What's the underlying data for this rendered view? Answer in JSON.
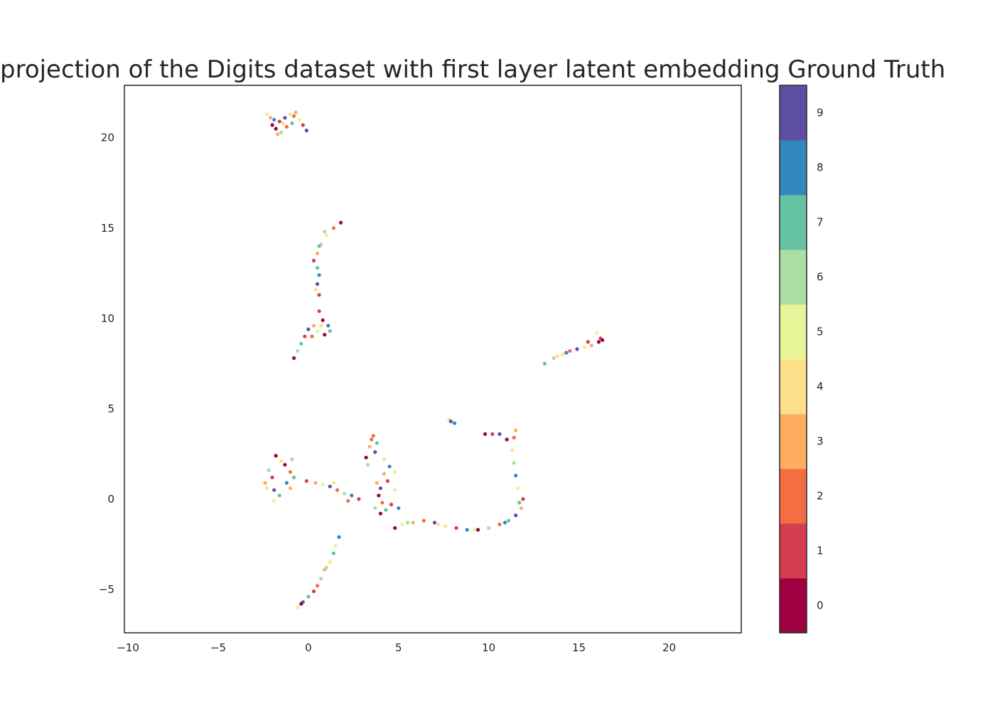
{
  "chart_data": {
    "type": "scatter",
    "title": "projection of the Digits dataset with first layer latent embedding Ground Truth",
    "xlabel": "",
    "ylabel": "",
    "xlim": [
      -10.2,
      24
    ],
    "ylim": [
      -7.4,
      22.9
    ],
    "xticks": [
      -10,
      -5,
      0,
      5,
      10,
      15,
      20
    ],
    "yticks": [
      -5,
      0,
      5,
      10,
      15,
      20
    ],
    "grid": false,
    "colorbar": {
      "labels": [
        "0",
        "1",
        "2",
        "3",
        "4",
        "5",
        "6",
        "7",
        "8",
        "9"
      ],
      "colors": [
        "#9e0142",
        "#d53e4f",
        "#f46d43",
        "#fdae61",
        "#fee08b",
        "#e6f598",
        "#abdda4",
        "#66c2a5",
        "#3288bd",
        "#5e4fa2"
      ]
    },
    "clusters": [
      {
        "pts": [
          [
            -2.3,
            21.3
          ],
          [
            -2.1,
            21.1
          ],
          [
            -1.9,
            21.0
          ],
          [
            -1.6,
            20.9
          ],
          [
            -1.3,
            21.1
          ],
          [
            -1.0,
            21.3
          ],
          [
            -0.7,
            21.4
          ],
          [
            -1.8,
            20.5
          ],
          [
            -1.5,
            20.3
          ],
          [
            -1.2,
            20.6
          ],
          [
            -0.9,
            20.8
          ],
          [
            -0.5,
            21.0
          ],
          [
            -0.3,
            20.7
          ],
          [
            -0.1,
            20.4
          ],
          [
            -2.0,
            20.7
          ],
          [
            -1.4,
            20.8
          ],
          [
            -0.8,
            21.2
          ],
          [
            -1.7,
            20.2
          ]
        ],
        "c": [
          4,
          3,
          8,
          1,
          9,
          4,
          3,
          0,
          6,
          2,
          7,
          5,
          1,
          9,
          0,
          4,
          2,
          3
        ]
      },
      {
        "pts": [
          [
            1.8,
            15.3
          ],
          [
            1.4,
            15.0
          ],
          [
            1.0,
            14.6
          ],
          [
            0.7,
            14.1
          ],
          [
            0.5,
            13.6
          ],
          [
            0.3,
            13.2
          ],
          [
            0.5,
            12.8
          ],
          [
            0.6,
            12.4
          ],
          [
            0.5,
            11.9
          ],
          [
            0.4,
            11.6
          ],
          [
            0.6,
            11.3
          ],
          [
            0.9,
            14.8
          ],
          [
            0.6,
            14.0
          ]
        ],
        "c": [
          0,
          2,
          5,
          6,
          3,
          1,
          7,
          8,
          9,
          4,
          1,
          6,
          7
        ]
      },
      {
        "pts": [
          [
            0.6,
            10.4
          ],
          [
            0.8,
            9.9
          ],
          [
            0.3,
            9.6
          ],
          [
            0.0,
            9.4
          ],
          [
            -0.2,
            9.0
          ],
          [
            0.5,
            9.3
          ],
          [
            0.9,
            9.1
          ],
          [
            1.2,
            9.3
          ],
          [
            0.7,
            9.6
          ],
          [
            -0.4,
            8.6
          ],
          [
            -0.6,
            8.2
          ],
          [
            -0.8,
            7.8
          ],
          [
            0.2,
            9.0
          ],
          [
            1.1,
            9.6
          ]
        ],
        "c": [
          1,
          0,
          3,
          9,
          1,
          5,
          0,
          7,
          4,
          7,
          6,
          0,
          2,
          8
        ]
      },
      {
        "pts": [
          [
            13.1,
            7.5
          ],
          [
            13.6,
            7.8
          ],
          [
            14.1,
            8.0
          ],
          [
            14.5,
            8.2
          ],
          [
            14.9,
            8.3
          ],
          [
            15.3,
            8.4
          ],
          [
            15.7,
            8.5
          ],
          [
            16.1,
            8.7
          ],
          [
            16.2,
            8.9
          ],
          [
            16.0,
            9.2
          ],
          [
            15.5,
            8.7
          ],
          [
            14.3,
            8.1
          ],
          [
            13.8,
            7.9
          ],
          [
            16.3,
            8.8
          ]
        ],
        "c": [
          7,
          6,
          4,
          2,
          9,
          5,
          3,
          0,
          1,
          5,
          1,
          8,
          4,
          0
        ]
      },
      {
        "pts": [
          [
            7.8,
            4.4
          ],
          [
            8.1,
            4.2
          ],
          [
            7.9,
            4.3
          ]
        ],
        "c": [
          4,
          8,
          9
        ]
      },
      {
        "pts": [
          [
            -1.8,
            2.4
          ],
          [
            -1.5,
            2.1
          ],
          [
            -2.2,
            1.6
          ],
          [
            -2.0,
            1.2
          ],
          [
            -2.4,
            0.9
          ],
          [
            -1.9,
            0.5
          ],
          [
            -1.6,
            0.2
          ],
          [
            -1.9,
            -0.1
          ],
          [
            -1.2,
            0.9
          ],
          [
            -1.0,
            1.5
          ],
          [
            -0.9,
            2.2
          ],
          [
            -1.3,
            1.9
          ],
          [
            -2.3,
            0.6
          ],
          [
            -0.8,
            1.2
          ],
          [
            -1.0,
            0.6
          ]
        ],
        "c": [
          0,
          4,
          6,
          1,
          3,
          9,
          7,
          5,
          8,
          2,
          6,
          0,
          4,
          7,
          3
        ]
      },
      {
        "pts": [
          [
            -0.1,
            1.0
          ],
          [
            0.4,
            0.9
          ],
          [
            0.8,
            0.8
          ],
          [
            1.2,
            0.7
          ],
          [
            1.6,
            0.5
          ],
          [
            2.0,
            0.3
          ],
          [
            2.4,
            0.2
          ],
          [
            2.8,
            0.0
          ],
          [
            1.4,
            0.9
          ],
          [
            2.2,
            -0.1
          ]
        ],
        "c": [
          1,
          3,
          5,
          9,
          2,
          6,
          8,
          1,
          4,
          2
        ]
      },
      {
        "pts": [
          [
            3.6,
            3.5
          ],
          [
            3.8,
            3.1
          ],
          [
            3.4,
            2.9
          ],
          [
            3.7,
            2.6
          ],
          [
            3.2,
            2.3
          ],
          [
            3.3,
            1.9
          ],
          [
            4.2,
            2.2
          ],
          [
            4.5,
            1.8
          ],
          [
            4.8,
            1.5
          ],
          [
            4.2,
            1.4
          ],
          [
            4.0,
            0.6
          ],
          [
            3.9,
            0.2
          ],
          [
            4.1,
            -0.2
          ],
          [
            4.3,
            -0.6
          ],
          [
            3.7,
            -0.5
          ],
          [
            4.6,
            -0.3
          ],
          [
            4.8,
            0.5
          ],
          [
            5.0,
            -0.5
          ],
          [
            4.0,
            -0.8
          ],
          [
            3.8,
            0.9
          ],
          [
            3.5,
            3.3
          ],
          [
            4.4,
            1.0
          ]
        ],
        "c": [
          2,
          7,
          3,
          9,
          0,
          6,
          4,
          8,
          5,
          3,
          9,
          0,
          2,
          7,
          6,
          1,
          4,
          8,
          0,
          3,
          2,
          1
        ]
      },
      {
        "pts": [
          [
            4.8,
            -1.6
          ],
          [
            5.2,
            -1.4
          ],
          [
            5.8,
            -1.3
          ],
          [
            6.4,
            -1.2
          ],
          [
            7.0,
            -1.3
          ],
          [
            7.6,
            -1.5
          ],
          [
            8.2,
            -1.6
          ],
          [
            8.8,
            -1.7
          ],
          [
            9.4,
            -1.7
          ],
          [
            10.0,
            -1.6
          ],
          [
            10.6,
            -1.4
          ],
          [
            11.1,
            -1.2
          ],
          [
            11.5,
            -0.9
          ],
          [
            11.8,
            -0.5
          ],
          [
            11.9,
            0.0
          ],
          [
            11.6,
            0.6
          ],
          [
            11.5,
            1.3
          ],
          [
            11.4,
            2.0
          ],
          [
            11.3,
            2.7
          ],
          [
            11.4,
            3.4
          ],
          [
            11.5,
            3.8
          ],
          [
            11.0,
            3.3
          ],
          [
            10.6,
            3.6
          ],
          [
            10.2,
            3.6
          ],
          [
            9.8,
            3.6
          ],
          [
            5.5,
            -1.3
          ],
          [
            7.2,
            -1.4
          ],
          [
            9.2,
            -1.7
          ],
          [
            10.9,
            -1.3
          ],
          [
            11.7,
            -0.2
          ]
        ],
        "c": [
          0,
          5,
          3,
          2,
          9,
          4,
          1,
          8,
          0,
          6,
          2,
          7,
          9,
          3,
          1,
          5,
          8,
          6,
          4,
          2,
          3,
          0,
          9,
          1,
          0,
          6,
          4,
          5,
          8,
          7
        ]
      },
      {
        "pts": [
          [
            1.7,
            -2.1
          ],
          [
            1.5,
            -2.6
          ],
          [
            1.4,
            -3.0
          ],
          [
            1.2,
            -3.5
          ],
          [
            0.9,
            -3.9
          ],
          [
            0.7,
            -4.4
          ],
          [
            0.5,
            -4.8
          ],
          [
            0.3,
            -5.1
          ],
          [
            0.0,
            -5.4
          ],
          [
            -0.3,
            -5.7
          ],
          [
            -0.6,
            -6.0
          ],
          [
            -0.4,
            -5.8
          ],
          [
            1.0,
            -3.8
          ]
        ],
        "c": [
          8,
          5,
          7,
          4,
          3,
          6,
          2,
          1,
          7,
          9,
          5,
          0,
          6
        ]
      }
    ]
  }
}
